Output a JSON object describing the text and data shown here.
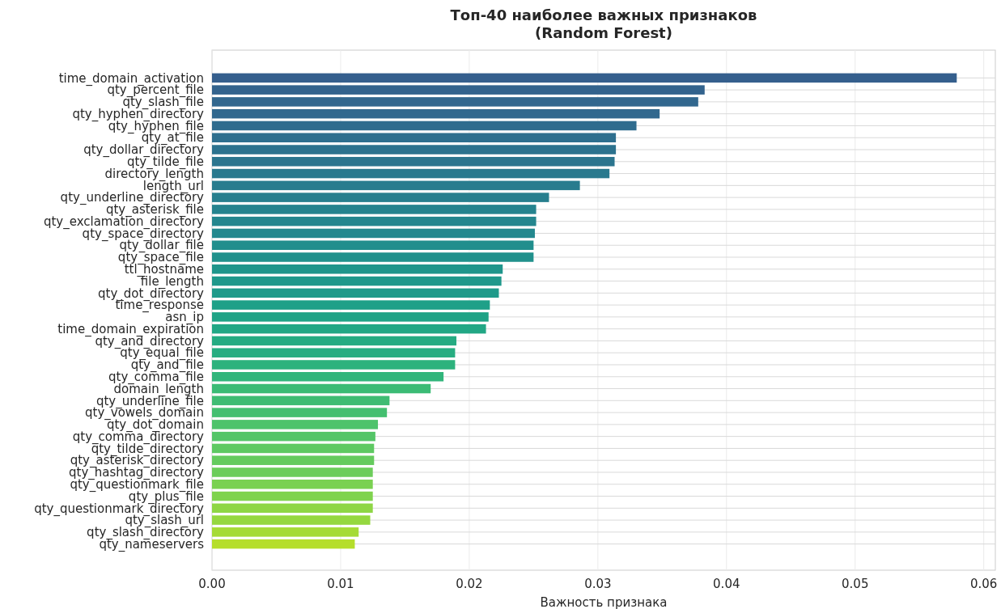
{
  "chart_data": {
    "type": "bar",
    "orientation": "horizontal",
    "title": "Топ-40 наиболее важных признаков\n(Random Forest)",
    "xlabel": "Важность признака",
    "categories": [
      "time_domain_activation",
      "qty_percent_file",
      "qty_slash_file",
      "qty_hyphen_directory",
      "qty_hyphen_file",
      "qty_at_file",
      "qty_dollar_directory",
      "qty_tilde_file",
      "directory_length",
      "length_url",
      "qty_underline_directory",
      "qty_asterisk_file",
      "qty_exclamation_directory",
      "qty_space_directory",
      "qty_dollar_file",
      "qty_space_file",
      "ttl_hostname",
      "file_length",
      "qty_dot_directory",
      "time_response",
      "asn_ip",
      "time_domain_expiration",
      "qty_and_directory",
      "qty_equal_file",
      "qty_and_file",
      "qty_comma_file",
      "domain_length",
      "qty_underline_file",
      "qty_vowels_domain",
      "qty_dot_domain",
      "qty_comma_directory",
      "qty_tilde_directory",
      "qty_asterisk_directory",
      "qty_hashtag_directory",
      "qty_questionmark_file",
      "qty_plus_file",
      "qty_questionmark_directory",
      "qty_slash_url",
      "qty_slash_directory",
      "qty_nameservers"
    ],
    "values": [
      0.0579,
      0.0383,
      0.0378,
      0.0348,
      0.033,
      0.0314,
      0.0314,
      0.0313,
      0.0309,
      0.0286,
      0.0262,
      0.0252,
      0.0252,
      0.0251,
      0.025,
      0.025,
      0.0226,
      0.0225,
      0.0223,
      0.0216,
      0.0215,
      0.0213,
      0.019,
      0.0189,
      0.0189,
      0.018,
      0.017,
      0.0138,
      0.0136,
      0.0129,
      0.0127,
      0.0126,
      0.0126,
      0.0125,
      0.0125,
      0.0125,
      0.0125,
      0.0123,
      0.0114,
      0.0111
    ],
    "colors": [
      "#355f8d",
      "#33638d",
      "#32678e",
      "#31688e",
      "#2f6c8e",
      "#2e6f8e",
      "#2c728e",
      "#2b758e",
      "#29798e",
      "#287c8e",
      "#277f8e",
      "#25838e",
      "#24868e",
      "#23888e",
      "#218e8d",
      "#21918c",
      "#1f958b",
      "#1f988b",
      "#1f9a8a",
      "#1fa088",
      "#20a386",
      "#22a785",
      "#25ab82",
      "#27ad81",
      "#2db27d",
      "#31b57b",
      "#3bbb75",
      "#3fbc73",
      "#44bf70",
      "#4ec36b",
      "#54c568",
      "#5ec962",
      "#65cb5e",
      "#6ccd5a",
      "#7ad151",
      "#7fd34e",
      "#8ed645",
      "#95d840",
      "#a5db36",
      "#b5de2b"
    ],
    "xlim": [
      0,
      0.0609
    ],
    "xticks": [
      {
        "value": 0,
        "label": "0.00"
      },
      {
        "value": 0.01,
        "label": "0.01"
      },
      {
        "value": 0.02,
        "label": "0.02"
      },
      {
        "value": 0.03,
        "label": "0.03"
      },
      {
        "value": 0.04,
        "label": "0.04"
      },
      {
        "value": 0.05,
        "label": "0.05"
      },
      {
        "value": 0.06,
        "label": "0.06"
      }
    ],
    "grid": true
  }
}
